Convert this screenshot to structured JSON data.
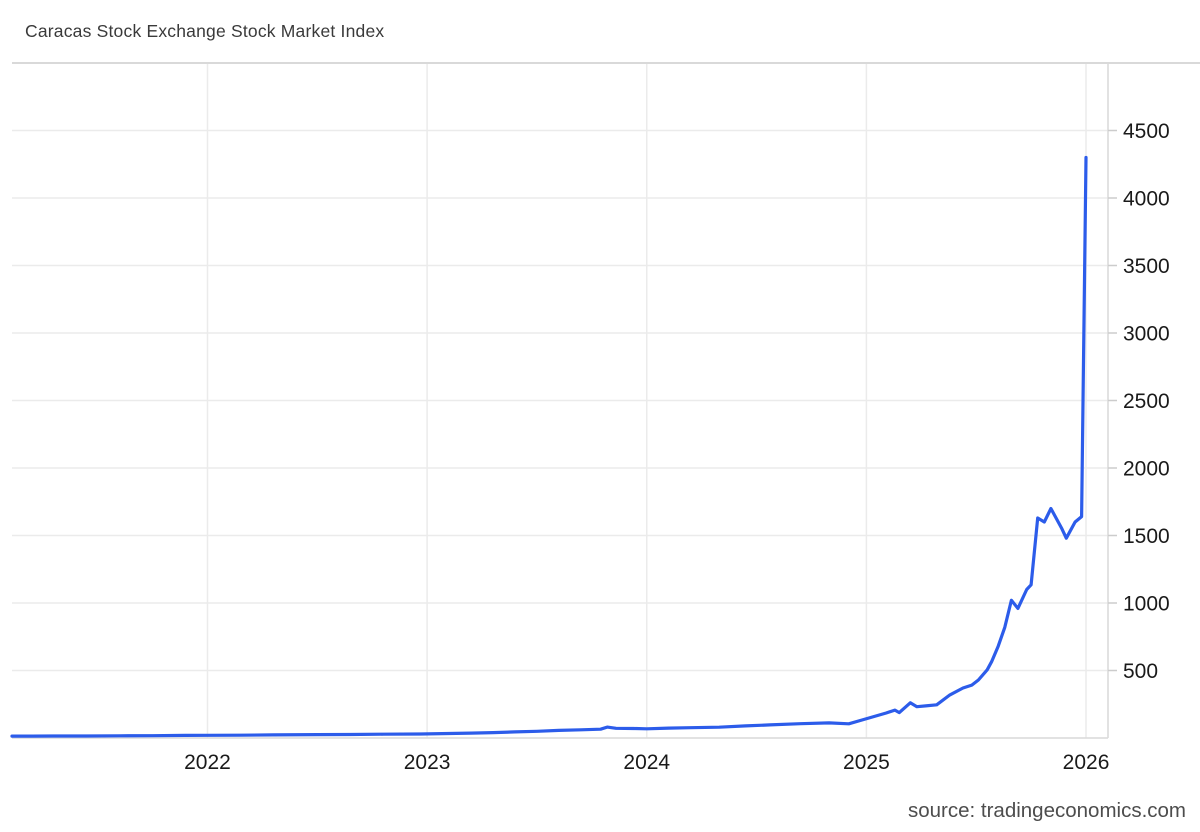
{
  "header": {
    "title": "Caracas Stock Exchange Stock Market Index"
  },
  "footer": {
    "source": "source: tradingeconomics.com"
  },
  "colors": {
    "background": "#ffffff",
    "line": "#2c5cea",
    "grid": "#ebebeb",
    "axis": "#d9d9d9",
    "tick": "#cccccc",
    "tick_label": "#1a1a1a",
    "title_text": "#3a3a3a",
    "source_text": "#4d4d4d"
  },
  "chart_data": {
    "type": "line",
    "title": "Caracas Stock Exchange Stock Market Index",
    "xlabel": "",
    "ylabel": "",
    "legend": "none",
    "grid": true,
    "y_axis_side": "right",
    "xlim": [
      2021.11,
      2026.1
    ],
    "ylim": [
      0,
      5000
    ],
    "x_ticks": [
      2022,
      2023,
      2024,
      2025,
      2026
    ],
    "y_ticks": [
      500,
      1000,
      1500,
      2000,
      2500,
      3000,
      3500,
      4000,
      4500
    ],
    "series": [
      {
        "name": "Caracas Stock Exchange Stock Market Index",
        "points": [
          [
            2021.11,
            14
          ],
          [
            2021.2,
            14
          ],
          [
            2021.3,
            15
          ],
          [
            2021.45,
            15
          ],
          [
            2021.6,
            16
          ],
          [
            2021.75,
            17
          ],
          [
            2021.9,
            19
          ],
          [
            2022.0,
            20
          ],
          [
            2022.15,
            21
          ],
          [
            2022.3,
            23
          ],
          [
            2022.5,
            25
          ],
          [
            2022.65,
            26
          ],
          [
            2022.8,
            28
          ],
          [
            2022.97,
            30
          ],
          [
            2023.1,
            33
          ],
          [
            2023.2,
            36
          ],
          [
            2023.3,
            40
          ],
          [
            2023.4,
            45
          ],
          [
            2023.5,
            50
          ],
          [
            2023.6,
            56
          ],
          [
            2023.7,
            61
          ],
          [
            2023.79,
            65
          ],
          [
            2023.82,
            81
          ],
          [
            2023.86,
            72
          ],
          [
            2023.94,
            70
          ],
          [
            2024.0,
            68
          ],
          [
            2024.1,
            73
          ],
          [
            2024.2,
            76
          ],
          [
            2024.33,
            80
          ],
          [
            2024.45,
            90
          ],
          [
            2024.56,
            97
          ],
          [
            2024.7,
            106
          ],
          [
            2024.83,
            112
          ],
          [
            2024.92,
            105
          ],
          [
            2024.98,
            133
          ],
          [
            2025.09,
            185
          ],
          [
            2025.13,
            207
          ],
          [
            2025.15,
            188
          ],
          [
            2025.2,
            261
          ],
          [
            2025.23,
            232
          ],
          [
            2025.27,
            238
          ],
          [
            2025.32,
            246
          ],
          [
            2025.38,
            319
          ],
          [
            2025.44,
            370
          ],
          [
            2025.48,
            392
          ],
          [
            2025.51,
            430
          ],
          [
            2025.55,
            505
          ],
          [
            2025.57,
            565
          ],
          [
            2025.6,
            680
          ],
          [
            2025.63,
            820
          ],
          [
            2025.66,
            1020
          ],
          [
            2025.69,
            960
          ],
          [
            2025.73,
            1100
          ],
          [
            2025.75,
            1135
          ],
          [
            2025.78,
            1630
          ],
          [
            2025.81,
            1600
          ],
          [
            2025.84,
            1700
          ],
          [
            2025.89,
            1550
          ],
          [
            2025.91,
            1480
          ],
          [
            2025.95,
            1600
          ],
          [
            2025.98,
            1640
          ],
          [
            2026.0,
            4300
          ]
        ]
      }
    ]
  }
}
